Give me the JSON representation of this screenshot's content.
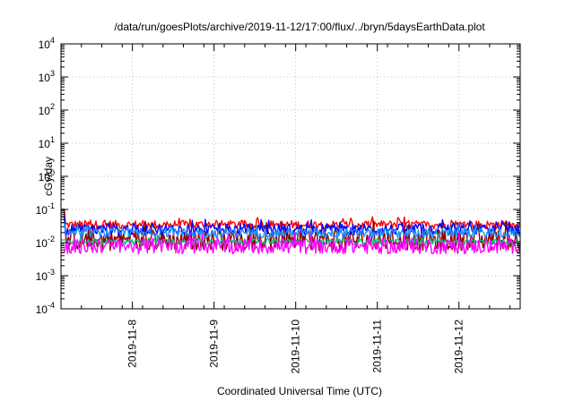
{
  "chart_data": {
    "type": "line",
    "title": "/data/run/goesPlots/archive/2019-11-12/17:00/flux/../bryn/5daysEarthData.plot",
    "xlabel": "Coordinated Universal Time (UTC)",
    "ylabel": "cGy/day",
    "y_scale": "log",
    "ylim": [
      0.0001,
      10000
    ],
    "xlim": [
      "2019-11-07 03:00",
      "2019-11-12 18:00"
    ],
    "y_ticks": [
      {
        "value": 0.0001,
        "base": "10",
        "exp": "-4"
      },
      {
        "value": 0.001,
        "base": "10",
        "exp": "-3"
      },
      {
        "value": 0.01,
        "base": "10",
        "exp": "-2"
      },
      {
        "value": 0.1,
        "base": "10",
        "exp": "-1"
      },
      {
        "value": 1,
        "base": "10",
        "exp": "0"
      },
      {
        "value": 10,
        "base": "10",
        "exp": "1"
      },
      {
        "value": 100,
        "base": "10",
        "exp": "2"
      },
      {
        "value": 1000,
        "base": "10",
        "exp": "3"
      },
      {
        "value": 10000,
        "base": "10",
        "exp": "4"
      }
    ],
    "x_ticks": [
      "2019-11-8",
      "2019-11-9",
      "2019-11-10",
      "2019-11-11",
      "2019-11-12"
    ],
    "grid": true,
    "series": [
      {
        "color": "#ff0000",
        "y_low": 0.022,
        "y_high": 0.06,
        "y_start": 0.1
      },
      {
        "color": "#8b0000",
        "y_low": 0.004,
        "y_high": 0.045,
        "y_start": 0.1
      },
      {
        "color": "#0000ff",
        "y_low": 0.014,
        "y_high": 0.05,
        "y_start": 0.06
      },
      {
        "color": "#1e90ff",
        "y_low": 0.012,
        "y_high": 0.035,
        "y_start": 0.04
      },
      {
        "color": "#00c080",
        "y_low": 0.008,
        "y_high": 0.015,
        "y_start": 0.012
      },
      {
        "color": "#ff00ff",
        "y_low": 0.0035,
        "y_high": 0.02,
        "y_start": 0.005
      }
    ]
  }
}
